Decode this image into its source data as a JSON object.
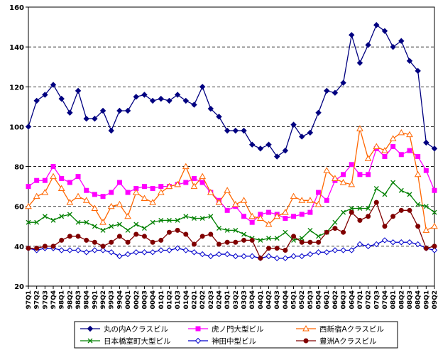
{
  "chart_data": {
    "type": "line",
    "categories": [
      "97Q1",
      "97Q2",
      "97Q3",
      "97Q4",
      "98Q1",
      "98Q2",
      "98Q3",
      "98Q4",
      "99Q1",
      "99Q2",
      "99Q3",
      "99Q4",
      "00Q1",
      "00Q2",
      "00Q3",
      "00Q4",
      "01Q1",
      "01Q2",
      "01Q3",
      "01Q4",
      "02Q1",
      "02Q2",
      "02Q3",
      "02Q4",
      "03Q1",
      "03Q2",
      "03Q3",
      "03Q4",
      "04Q1",
      "04Q2",
      "04Q3",
      "04Q4",
      "05Q1",
      "05Q2",
      "05Q3",
      "05Q4",
      "06Q1",
      "06Q2",
      "06Q3",
      "06Q4",
      "07Q1",
      "07Q2",
      "07Q3",
      "07Q4",
      "08Q1",
      "08Q2",
      "08Q3",
      "08Q4",
      "09Q1",
      "09Q2"
    ],
    "series": [
      {
        "name": "丸の内Aクラスビル",
        "color": "#000080",
        "marker": "diamond",
        "values": [
          100,
          113,
          116,
          121,
          114,
          107,
          118,
          104,
          104,
          108,
          98,
          108,
          108,
          115,
          116,
          113,
          114,
          113,
          116,
          113,
          111,
          120,
          109,
          105,
          98,
          98,
          98,
          91,
          89,
          91,
          85,
          88,
          101,
          95,
          97,
          107,
          118,
          117,
          122,
          146,
          132,
          141,
          151,
          148,
          140,
          143,
          133,
          128,
          92,
          89
        ]
      },
      {
        "name": "虎ノ門大型ビル",
        "color": "#ff00ff",
        "marker": "square",
        "values": [
          70,
          73,
          73,
          80,
          74,
          72,
          75,
          68,
          66,
          65,
          67,
          72,
          67,
          69,
          70,
          69,
          70,
          70,
          71,
          72,
          74,
          72,
          67,
          63,
          58,
          60,
          55,
          52,
          56,
          57,
          56,
          54,
          55,
          56,
          57,
          67,
          63,
          73,
          76,
          81,
          76,
          76,
          89,
          85,
          90,
          86,
          88,
          85,
          78,
          68
        ]
      },
      {
        "name": "西新宿Aクラスビル",
        "color": "#ff6600",
        "marker": "triangle",
        "values": [
          60,
          65,
          67,
          75,
          69,
          62,
          65,
          63,
          59,
          52,
          60,
          61,
          55,
          67,
          64,
          62,
          67,
          70,
          71,
          80,
          70,
          75,
          67,
          62,
          68,
          61,
          63,
          55,
          54,
          51,
          55,
          57,
          65,
          63,
          63,
          61,
          78,
          74,
          72,
          71,
          99,
          84,
          90,
          88,
          94,
          97,
          96,
          76,
          48,
          50
        ]
      },
      {
        "name": "日本橋室町大型ビル",
        "color": "#008000",
        "marker": "cross",
        "values": [
          52,
          52,
          55,
          53,
          55,
          56,
          52,
          52,
          50,
          48,
          50,
          51,
          48,
          51,
          49,
          52,
          53,
          53,
          53,
          55,
          54,
          54,
          55,
          49,
          48,
          48,
          46,
          44,
          43,
          44,
          44,
          47,
          43,
          44,
          48,
          45,
          47,
          52,
          57,
          59,
          59,
          59,
          69,
          66,
          72,
          68,
          66,
          61,
          60,
          57
        ]
      },
      {
        "name": "神田中型ビル",
        "color": "#0000cc",
        "marker": "diamond-open",
        "values": [
          39,
          38,
          39,
          39,
          38,
          38,
          38,
          37,
          38,
          38,
          37,
          35,
          36,
          37,
          37,
          37,
          38,
          38,
          39,
          38,
          37,
          36,
          35,
          36,
          36,
          35,
          35,
          35,
          34,
          35,
          34,
          34,
          35,
          35,
          36,
          37,
          37,
          38,
          38,
          38,
          41,
          40,
          41,
          43,
          42,
          42,
          42,
          41,
          39,
          38
        ]
      },
      {
        "name": "豊洲Aクラスビル",
        "color": "#800000",
        "marker": "circle",
        "values": [
          39,
          39,
          40,
          40,
          43,
          45,
          45,
          43,
          42,
          40,
          42,
          45,
          42,
          46,
          45,
          42,
          43,
          47,
          48,
          46,
          41,
          45,
          46,
          41,
          42,
          42,
          43,
          43,
          34,
          39,
          39,
          38,
          45,
          42,
          42,
          42,
          47,
          49,
          47,
          57,
          53,
          55,
          62,
          50,
          55,
          58,
          58,
          50,
          39,
          40
        ]
      }
    ],
    "ylim": [
      20,
      160
    ],
    "yticks": [
      20,
      40,
      60,
      80,
      100,
      120,
      140,
      160
    ],
    "grid": true,
    "legend": "bottom"
  }
}
